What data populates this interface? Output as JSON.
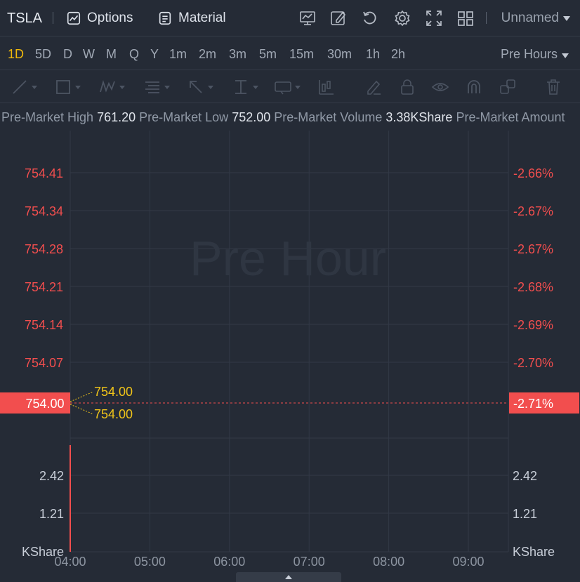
{
  "topbar": {
    "symbol": "TSLA",
    "options_label": "Options",
    "material_label": "Material",
    "layout_name": "Unnamed"
  },
  "periods": {
    "items": [
      "1D",
      "5D",
      "D",
      "W",
      "M",
      "Q",
      "Y",
      "1m",
      "2m",
      "3m",
      "5m",
      "15m",
      "30m",
      "1h",
      "2h"
    ],
    "active": "1D",
    "session_label": "Pre Hours"
  },
  "info": {
    "high_label": "Pre-Market High",
    "high_value": "761.20",
    "low_label": "Pre-Market Low",
    "low_value": "752.00",
    "volume_label": "Pre-Market Volume",
    "volume_value": "3.38KShare",
    "amount_label": "Pre-Market Amount"
  },
  "chart_data": {
    "type": "line",
    "watermark": "Pre Hour",
    "price_axis_left": [
      "754.41",
      "754.34",
      "754.28",
      "754.21",
      "754.14",
      "754.07"
    ],
    "percent_axis_right": [
      "-2.66%",
      "-2.67%",
      "-2.67%",
      "-2.68%",
      "-2.69%",
      "-2.70%"
    ],
    "current_price": "754.00",
    "current_percent": "-2.71%",
    "price_callouts": [
      "754.00",
      "754.00"
    ],
    "volume_axis_left": [
      "2.42",
      "1.21",
      "KShare"
    ],
    "volume_axis_right": [
      "2.42",
      "1.21",
      "KShare"
    ],
    "x_ticks": [
      "04:00",
      "05:00",
      "06:00",
      "07:00",
      "08:00",
      "09:00"
    ],
    "colors": {
      "down": "#f24e4e",
      "callout": "#f0c419",
      "grid": "#323946",
      "axis_text": "#c8ced8"
    }
  }
}
